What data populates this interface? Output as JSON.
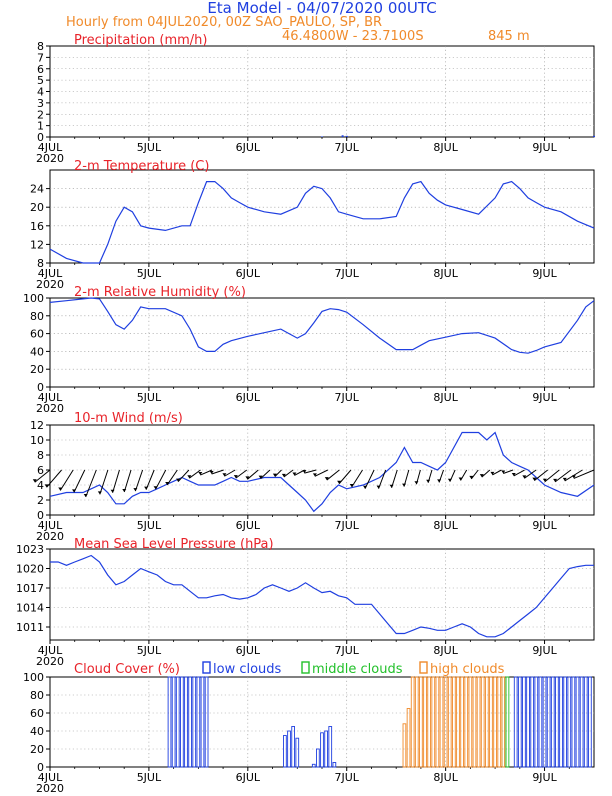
{
  "header": {
    "title": "Eta Model - 04/07/2020 00UTC",
    "subtitle": "Hourly from 04JUL2020, 00Z  SAO_PAULO, SP, BR",
    "location": "46.4800W - 23.7100S",
    "elevation": "845  m"
  },
  "colors": {
    "blue": "#1f3fe0",
    "red": "#e8232a",
    "orange": "#f08a2a",
    "green": "#22c02a",
    "black": "#000000"
  },
  "x_axis": {
    "ticks": [
      {
        "label": "4JUL",
        "sub": "2020",
        "hour": 0
      },
      {
        "label": "5JUL",
        "sub": "",
        "hour": 24
      },
      {
        "label": "6JUL",
        "sub": "",
        "hour": 48
      },
      {
        "label": "7JUL",
        "sub": "",
        "hour": 72
      },
      {
        "label": "8JUL",
        "sub": "",
        "hour": 96
      },
      {
        "label": "9JUL",
        "sub": "",
        "hour": 120
      }
    ],
    "range_hours": [
      0,
      132
    ]
  },
  "chart_data": [
    {
      "id": "precip",
      "type": "bar",
      "title": "Precipitation (mm/h)",
      "ylim": [
        0,
        8
      ],
      "yticks": [
        0,
        1,
        2,
        3,
        4,
        5,
        6,
        7,
        8
      ],
      "grid": true,
      "x": [
        66,
        71,
        72,
        132
      ],
      "values": [
        0.05,
        0.15,
        0.1,
        0.1
      ]
    },
    {
      "id": "temp",
      "type": "line",
      "title": "2-m Temperature (C)",
      "ylim": [
        8,
        28
      ],
      "yticks": [
        8,
        12,
        16,
        20,
        24
      ],
      "grid": true,
      "x": [
        0,
        4,
        8,
        10,
        12,
        14,
        16,
        18,
        20,
        22,
        24,
        28,
        32,
        34,
        36,
        38,
        40,
        42,
        44,
        46,
        48,
        52,
        56,
        60,
        62,
        64,
        66,
        68,
        70,
        72,
        76,
        80,
        84,
        86,
        88,
        90,
        92,
        94,
        96,
        100,
        104,
        108,
        110,
        112,
        114,
        116,
        118,
        120,
        124,
        128,
        132
      ],
      "values": [
        11,
        9,
        8,
        8,
        8,
        12,
        17,
        20,
        19,
        16,
        15.5,
        15,
        16,
        16,
        21,
        25.5,
        25.5,
        24,
        22,
        21,
        20,
        19,
        18.5,
        20,
        23,
        24.5,
        24,
        22,
        19,
        18.5,
        17.5,
        17.5,
        18,
        22,
        25,
        25.5,
        23,
        21.5,
        20.5,
        19.5,
        18.5,
        22,
        25,
        25.5,
        24,
        22,
        21,
        20,
        19,
        17,
        15.5
      ]
    },
    {
      "id": "rh",
      "type": "line",
      "title": "2-m Relative Humidity (%)",
      "ylim": [
        0,
        100
      ],
      "yticks": [
        0,
        20,
        40,
        60,
        80,
        100
      ],
      "grid": true,
      "x": [
        0,
        4,
        8,
        10,
        12,
        14,
        16,
        18,
        20,
        22,
        24,
        28,
        32,
        34,
        36,
        38,
        40,
        42,
        44,
        48,
        52,
        56,
        58,
        60,
        62,
        64,
        66,
        68,
        70,
        72,
        76,
        80,
        84,
        88,
        90,
        92,
        96,
        100,
        104,
        108,
        112,
        114,
        116,
        118,
        120,
        124,
        128,
        130,
        132
      ],
      "values": [
        95,
        97,
        99,
        100,
        99,
        85,
        70,
        65,
        75,
        90,
        88,
        88,
        80,
        65,
        45,
        40,
        40,
        48,
        52,
        57,
        61,
        65,
        60,
        55,
        60,
        72,
        85,
        88,
        87,
        84,
        70,
        55,
        42,
        42,
        47,
        52,
        56,
        60,
        61,
        55,
        42,
        39,
        38,
        41,
        45,
        50,
        75,
        90,
        97
      ]
    },
    {
      "id": "wind",
      "type": "line",
      "title": "10-m Wind (m/s)",
      "ylim": [
        0,
        12
      ],
      "yticks": [
        0,
        2,
        4,
        6,
        8,
        10,
        12
      ],
      "grid": true,
      "x": [
        0,
        4,
        8,
        10,
        12,
        14,
        16,
        18,
        20,
        22,
        24,
        26,
        28,
        30,
        32,
        34,
        36,
        38,
        40,
        42,
        44,
        46,
        48,
        52,
        56,
        58,
        60,
        62,
        64,
        66,
        68,
        70,
        72,
        76,
        80,
        84,
        86,
        88,
        90,
        92,
        94,
        96,
        100,
        104,
        106,
        108,
        110,
        112,
        114,
        116,
        118,
        120,
        124,
        128,
        132
      ],
      "values": [
        2.5,
        3,
        3,
        3.5,
        4,
        3,
        1.5,
        1.5,
        2.5,
        3,
        3,
        3.5,
        4,
        4.5,
        5,
        4.5,
        4,
        4,
        4,
        4.5,
        5,
        4.5,
        4.5,
        5,
        5,
        4,
        3,
        2,
        0.5,
        1.5,
        3,
        4,
        3.5,
        4,
        5,
        7,
        9,
        7,
        7,
        6.5,
        6,
        7,
        11,
        11,
        10,
        11,
        8,
        7,
        6.5,
        6,
        5,
        4,
        3,
        2.5,
        4
      ],
      "barb_speeds": [
        6,
        6.5,
        6.2,
        5.8,
        6.8,
        5.5,
        4.8,
        4.6,
        4.5,
        4.4,
        5.0,
        4.2,
        4.0,
        3.8,
        3.9,
        4.0,
        3.5,
        3.7,
        3.8,
        3.0,
        1.6,
        2.8,
        3.2,
        3.9,
        4.5,
        4.6,
        4.7,
        4.8,
        4.5,
        3.9,
        3.3,
        2.8,
        2.0,
        1.6,
        1.7,
        1.8,
        1.9,
        2.0,
        2.3,
        2.6,
        2.9,
        3.5,
        4.1,
        5.0,
        5.6,
        6.2,
        7.0,
        8.0
      ]
    },
    {
      "id": "mslp",
      "type": "line",
      "title": "Mean Sea Level Pressure (hPa)",
      "ylim": [
        1009,
        1023
      ],
      "yticks": [
        1011,
        1014,
        1017,
        1020,
        1023
      ],
      "grid": true,
      "x": [
        0,
        2,
        4,
        6,
        8,
        10,
        12,
        14,
        16,
        18,
        20,
        22,
        24,
        26,
        28,
        30,
        32,
        34,
        36,
        38,
        40,
        42,
        44,
        46,
        48,
        50,
        52,
        54,
        56,
        58,
        60,
        62,
        64,
        66,
        68,
        70,
        72,
        74,
        76,
        78,
        80,
        82,
        84,
        86,
        88,
        90,
        92,
        94,
        96,
        98,
        100,
        102,
        104,
        106,
        108,
        110,
        112,
        114,
        116,
        118,
        120,
        122,
        124,
        126,
        128,
        130,
        132
      ],
      "values": [
        1021,
        1021,
        1020.5,
        1021,
        1021.5,
        1022,
        1021,
        1019,
        1017.5,
        1018,
        1019,
        1020,
        1019.5,
        1019,
        1018,
        1017.5,
        1017.5,
        1016.5,
        1015.5,
        1015.5,
        1015.8,
        1016,
        1015.5,
        1015.3,
        1015.5,
        1016,
        1017,
        1017.5,
        1017,
        1016.5,
        1017,
        1017.8,
        1017,
        1016.3,
        1016.5,
        1015.8,
        1015.5,
        1014.5,
        1014.5,
        1014.5,
        1013,
        1011.5,
        1010,
        1010,
        1010.5,
        1011,
        1010.8,
        1010.5,
        1010.5,
        1011,
        1011.5,
        1011,
        1010,
        1009.5,
        1009.5,
        1010,
        1011,
        1012,
        1013,
        1014,
        1015.5,
        1017,
        1018.5,
        1020,
        1020.3,
        1020.5,
        1020.5
      ]
    },
    {
      "id": "clouds",
      "type": "bar",
      "title": "Cloud Cover (%)",
      "ylim": [
        0,
        100
      ],
      "yticks": [
        0,
        20,
        40,
        60,
        80,
        100
      ],
      "grid": true,
      "legend": [
        "low clouds",
        "middle clouds",
        "high clouds"
      ],
      "series": [
        {
          "name": "low clouds",
          "x": [
            29,
            30,
            31,
            32,
            33,
            34,
            35,
            36,
            37,
            38,
            57,
            58,
            59,
            60,
            64,
            65,
            66,
            67,
            68,
            69,
            113,
            114,
            115,
            116,
            117,
            118,
            119,
            120,
            121,
            122,
            123,
            124,
            125,
            126,
            127,
            128,
            129,
            130,
            131
          ],
          "values": [
            100,
            100,
            100,
            100,
            100,
            100,
            100,
            100,
            100,
            100,
            35,
            40,
            45,
            32,
            3,
            20,
            38,
            40,
            45,
            5,
            100,
            100,
            100,
            100,
            100,
            100,
            100,
            100,
            100,
            100,
            100,
            100,
            100,
            100,
            100,
            100,
            100,
            100,
            100
          ]
        },
        {
          "name": "middle clouds",
          "x": [
            110,
            111
          ],
          "values": [
            100,
            100
          ]
        },
        {
          "name": "high clouds",
          "x": [
            86,
            87,
            88,
            89,
            90,
            91,
            92,
            93,
            94,
            95,
            96,
            97,
            98,
            99,
            100,
            101,
            102,
            103,
            104,
            105,
            106,
            107,
            108,
            109,
            110
          ],
          "values": [
            48,
            65,
            100,
            100,
            100,
            100,
            100,
            100,
            100,
            100,
            100,
            100,
            100,
            100,
            100,
            100,
            100,
            100,
            100,
            100,
            100,
            100,
            100,
            100,
            100
          ]
        }
      ]
    }
  ]
}
